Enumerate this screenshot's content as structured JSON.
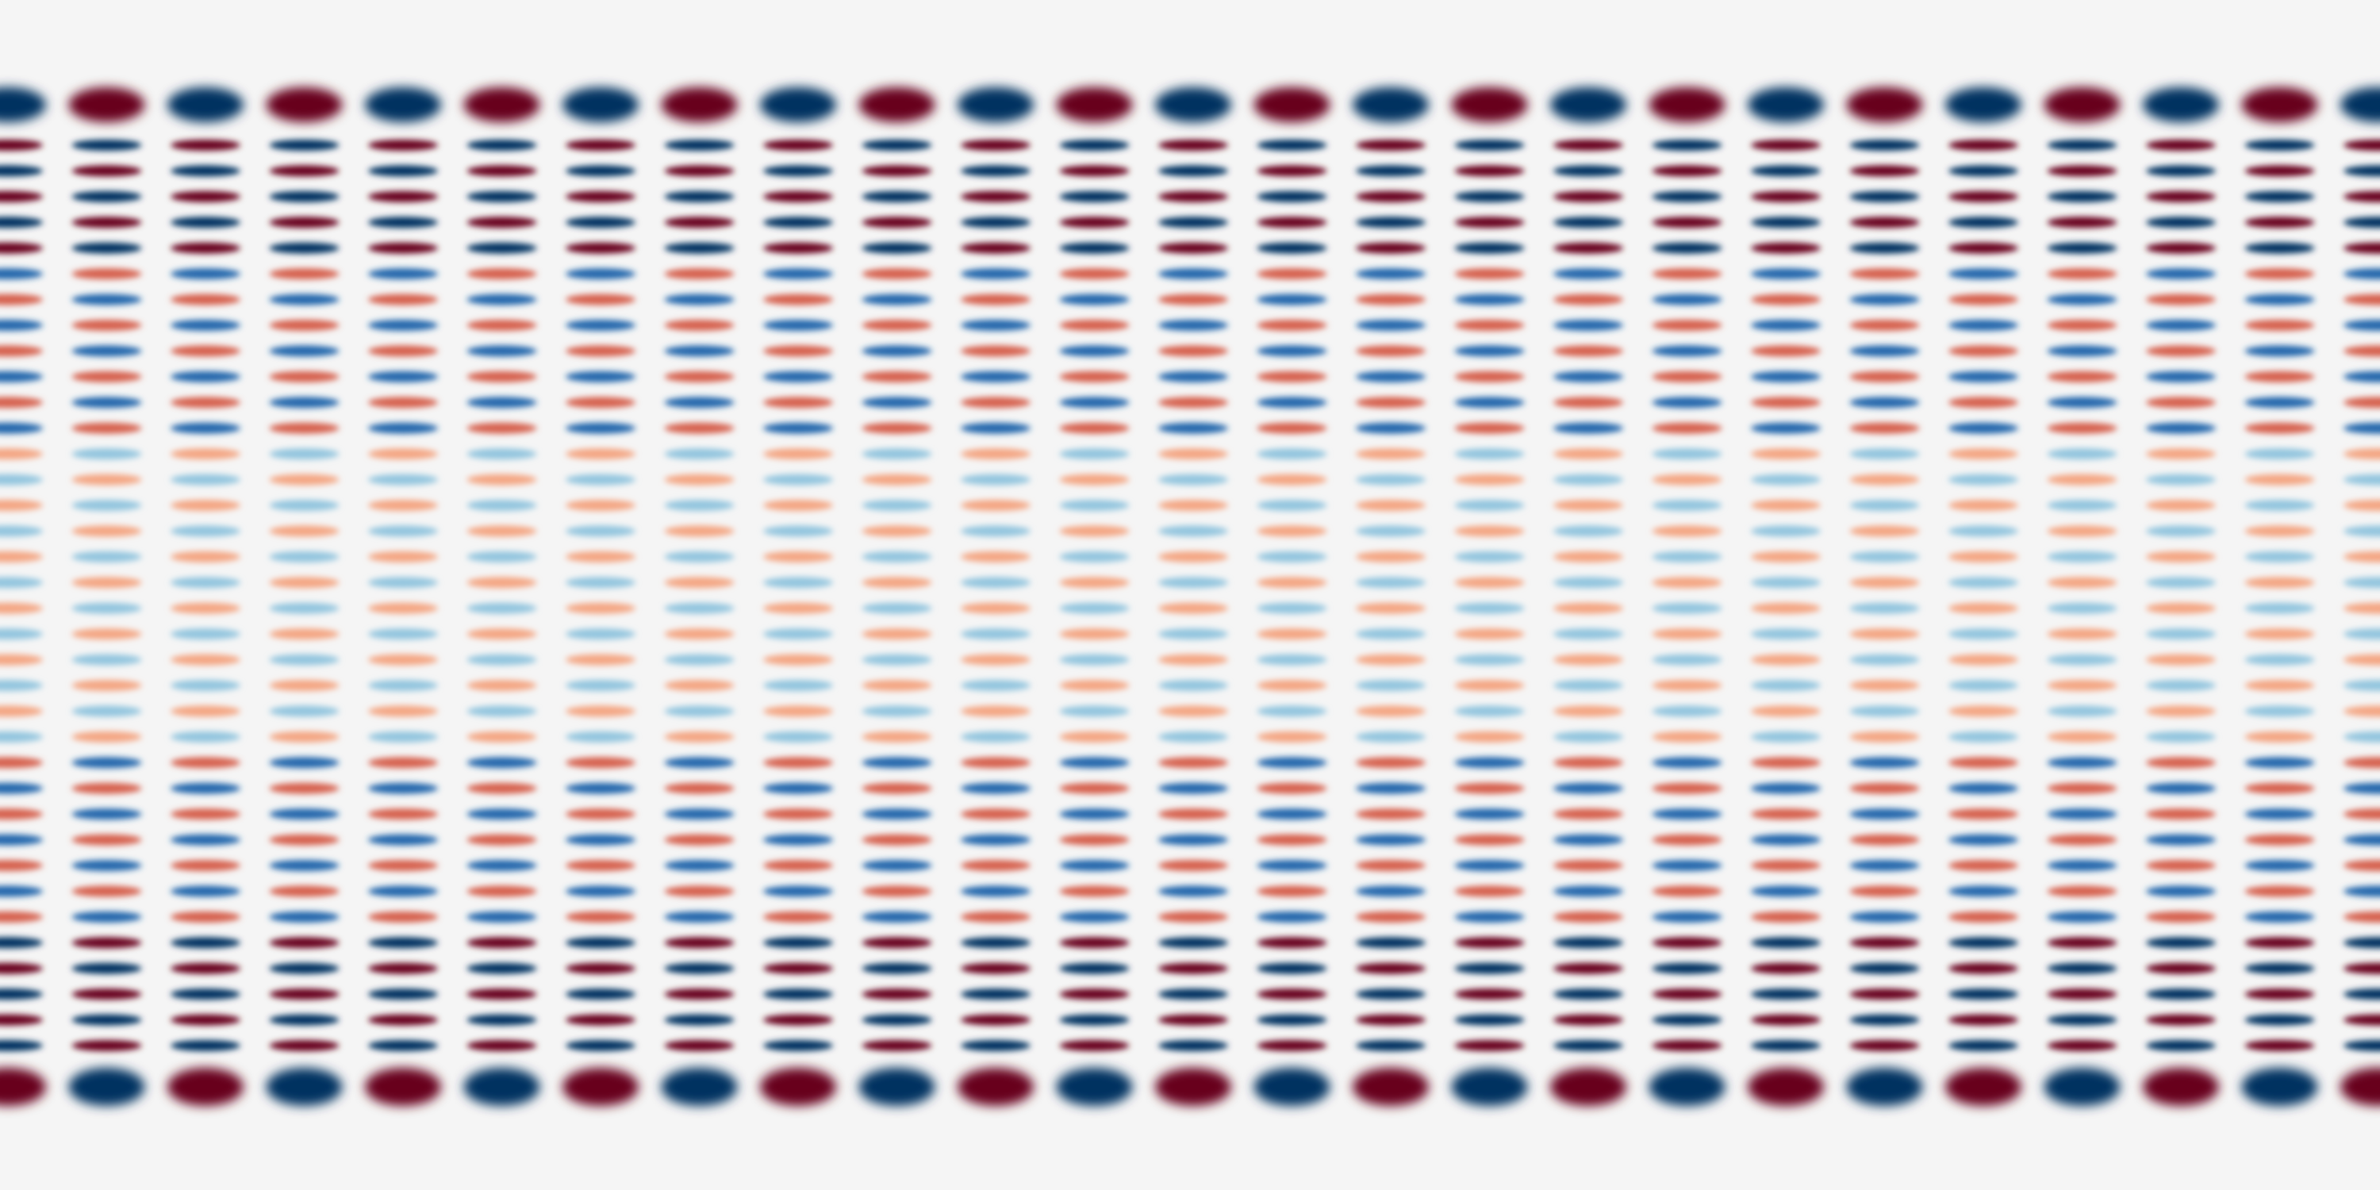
{
  "image": {
    "kind": "checkerboard-field-visualization",
    "colors": {
      "background": "#f5f5f5",
      "positive_strong": "#67001f",
      "positive_mid": "#d6604d",
      "positive_light": "#f4a582",
      "negative_strong": "#053061",
      "negative_mid": "#2166ac",
      "negative_light": "#92c5de"
    },
    "pattern": {
      "columns": 24,
      "rows": 38,
      "outer_rows_amplitude": 1.0,
      "inner_rows_min_amplitude": 0.5,
      "colormap": "diverging-red-blue"
    }
  }
}
